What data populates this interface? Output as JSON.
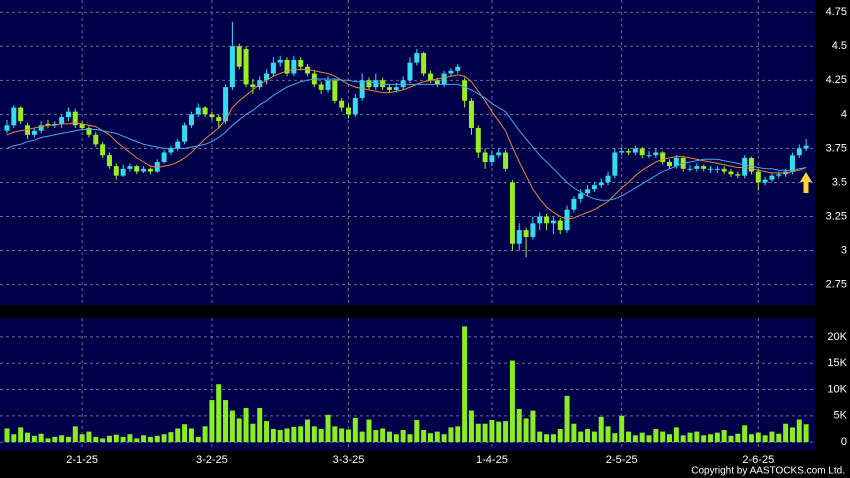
{
  "chart_data": {
    "type": "candlestick",
    "categories": [
      null,
      null,
      null,
      null,
      null,
      null,
      null,
      null,
      null,
      null,
      null,
      "2-1-25",
      null,
      null,
      null,
      null,
      null,
      null,
      null,
      null,
      null,
      null,
      null,
      null,
      null,
      null,
      null,
      null,
      null,
      null,
      "3-2-25",
      null,
      null,
      null,
      null,
      null,
      null,
      null,
      null,
      null,
      null,
      null,
      null,
      null,
      null,
      null,
      null,
      null,
      null,
      null,
      "3-3-25",
      null,
      null,
      null,
      null,
      null,
      null,
      null,
      null,
      null,
      null,
      null,
      null,
      null,
      null,
      null,
      null,
      null,
      null,
      null,
      null,
      "1-4-25",
      null,
      null,
      null,
      null,
      null,
      null,
      null,
      null,
      null,
      null,
      null,
      null,
      null,
      null,
      null,
      null,
      null,
      null,
      "2-5-25",
      null,
      null,
      null,
      null,
      null,
      null,
      null,
      null,
      null,
      null,
      null,
      null,
      null,
      null,
      null,
      null,
      null,
      null,
      null,
      "2-6-25",
      null,
      null,
      null,
      null,
      null,
      null,
      null
    ],
    "ohlc": [
      [
        3.88,
        3.96,
        3.86,
        3.92
      ],
      [
        3.92,
        4.07,
        3.9,
        4.05
      ],
      [
        4.05,
        4.06,
        3.93,
        3.95
      ],
      [
        3.92,
        3.94,
        3.82,
        3.85
      ],
      [
        3.85,
        3.9,
        3.83,
        3.88
      ],
      [
        3.88,
        3.95,
        3.86,
        3.92
      ],
      [
        3.93,
        3.96,
        3.9,
        3.92
      ],
      [
        3.92,
        3.95,
        3.9,
        3.93
      ],
      [
        3.93,
        4.0,
        3.9,
        3.98
      ],
      [
        3.98,
        4.05,
        3.95,
        4.02
      ],
      [
        4.02,
        4.04,
        3.9,
        3.92
      ],
      [
        3.93,
        3.95,
        3.88,
        3.9
      ],
      [
        3.9,
        3.92,
        3.83,
        3.85
      ],
      [
        3.85,
        3.87,
        3.76,
        3.78
      ],
      [
        3.78,
        3.8,
        3.68,
        3.7
      ],
      [
        3.7,
        3.72,
        3.6,
        3.62
      ],
      [
        3.62,
        3.64,
        3.52,
        3.55
      ],
      [
        3.55,
        3.63,
        3.54,
        3.6
      ],
      [
        3.6,
        3.64,
        3.58,
        3.62
      ],
      [
        3.62,
        3.63,
        3.56,
        3.58
      ],
      [
        3.58,
        3.62,
        3.57,
        3.6
      ],
      [
        3.6,
        3.61,
        3.56,
        3.58
      ],
      [
        3.58,
        3.67,
        3.57,
        3.65
      ],
      [
        3.65,
        3.74,
        3.64,
        3.72
      ],
      [
        3.72,
        3.77,
        3.7,
        3.75
      ],
      [
        3.75,
        3.82,
        3.73,
        3.8
      ],
      [
        3.8,
        3.94,
        3.78,
        3.92
      ],
      [
        3.92,
        4.02,
        3.9,
        4.0
      ],
      [
        4.0,
        4.08,
        3.98,
        4.05
      ],
      [
        4.05,
        4.06,
        3.98,
        4.0
      ],
      [
        4.0,
        4.02,
        3.96,
        3.98
      ],
      [
        3.98,
        4.0,
        3.9,
        3.95
      ],
      [
        3.95,
        4.22,
        3.93,
        4.2
      ],
      [
        4.2,
        4.68,
        4.18,
        4.5
      ],
      [
        4.5,
        4.52,
        4.33,
        4.35
      ],
      [
        4.48,
        4.5,
        4.2,
        4.22
      ],
      [
        4.22,
        4.26,
        4.15,
        4.2
      ],
      [
        4.2,
        4.28,
        4.18,
        4.25
      ],
      [
        4.25,
        4.33,
        4.22,
        4.3
      ],
      [
        4.3,
        4.42,
        4.28,
        4.38
      ],
      [
        4.38,
        4.43,
        4.35,
        4.4
      ],
      [
        4.4,
        4.42,
        4.28,
        4.3
      ],
      [
        4.3,
        4.43,
        4.28,
        4.4
      ],
      [
        4.4,
        4.42,
        4.32,
        4.35
      ],
      [
        4.35,
        4.37,
        4.28,
        4.3
      ],
      [
        4.3,
        4.32,
        4.2,
        4.22
      ],
      [
        4.22,
        4.24,
        4.15,
        4.18
      ],
      [
        4.18,
        4.28,
        4.16,
        4.25
      ],
      [
        4.25,
        4.26,
        4.08,
        4.1
      ],
      [
        4.1,
        4.12,
        4.02,
        4.05
      ],
      [
        4.05,
        4.08,
        3.97,
        4.0
      ],
      [
        4.0,
        4.15,
        3.98,
        4.12
      ],
      [
        4.12,
        4.3,
        4.1,
        4.25
      ],
      [
        4.25,
        4.27,
        4.18,
        4.2
      ],
      [
        4.2,
        4.3,
        4.18,
        4.25
      ],
      [
        4.25,
        4.27,
        4.18,
        4.2
      ],
      [
        4.2,
        4.22,
        4.16,
        4.18
      ],
      [
        4.18,
        4.23,
        4.16,
        4.2
      ],
      [
        4.2,
        4.28,
        4.18,
        4.25
      ],
      [
        4.25,
        4.42,
        4.23,
        4.38
      ],
      [
        4.38,
        4.48,
        4.36,
        4.45
      ],
      [
        4.45,
        4.46,
        4.28,
        4.3
      ],
      [
        4.3,
        4.32,
        4.23,
        4.25
      ],
      [
        4.25,
        4.27,
        4.2,
        4.22
      ],
      [
        4.22,
        4.32,
        4.2,
        4.3
      ],
      [
        4.3,
        4.34,
        4.28,
        4.32
      ],
      [
        4.32,
        4.37,
        4.3,
        4.35
      ],
      [
        4.25,
        4.27,
        4.05,
        4.1
      ],
      [
        4.1,
        4.12,
        3.85,
        3.9
      ],
      [
        3.9,
        3.92,
        3.68,
        3.72
      ],
      [
        3.72,
        3.75,
        3.6,
        3.65
      ],
      [
        3.65,
        3.73,
        3.62,
        3.7
      ],
      [
        3.7,
        3.75,
        3.68,
        3.72
      ],
      [
        3.72,
        3.74,
        3.58,
        3.6
      ],
      [
        3.5,
        3.52,
        3.0,
        3.05
      ],
      [
        3.05,
        3.2,
        3.0,
        3.15
      ],
      [
        3.15,
        3.17,
        2.95,
        3.1
      ],
      [
        3.1,
        3.25,
        3.08,
        3.2
      ],
      [
        3.2,
        3.28,
        3.15,
        3.25
      ],
      [
        3.25,
        3.27,
        3.15,
        3.2
      ],
      [
        3.2,
        3.25,
        3.12,
        3.22
      ],
      [
        3.22,
        3.24,
        3.12,
        3.15
      ],
      [
        3.15,
        3.33,
        3.13,
        3.3
      ],
      [
        3.3,
        3.4,
        3.28,
        3.38
      ],
      [
        3.38,
        3.45,
        3.35,
        3.42
      ],
      [
        3.42,
        3.48,
        3.4,
        3.45
      ],
      [
        3.45,
        3.5,
        3.43,
        3.48
      ],
      [
        3.48,
        3.53,
        3.46,
        3.5
      ],
      [
        3.5,
        3.58,
        3.48,
        3.55
      ],
      [
        3.55,
        3.75,
        3.53,
        3.72
      ],
      [
        3.72,
        3.76,
        3.7,
        3.73
      ],
      [
        3.73,
        3.75,
        3.7,
        3.72
      ],
      [
        3.72,
        3.77,
        3.7,
        3.75
      ],
      [
        3.75,
        3.76,
        3.68,
        3.7
      ],
      [
        3.7,
        3.73,
        3.68,
        3.7
      ],
      [
        3.7,
        3.75,
        3.68,
        3.72
      ],
      [
        3.72,
        3.73,
        3.63,
        3.65
      ],
      [
        3.65,
        3.67,
        3.6,
        3.62
      ],
      [
        3.62,
        3.7,
        3.6,
        3.68
      ],
      [
        3.68,
        3.69,
        3.58,
        3.6
      ],
      [
        3.6,
        3.63,
        3.58,
        3.6
      ],
      [
        3.6,
        3.64,
        3.58,
        3.62
      ],
      [
        3.62,
        3.63,
        3.58,
        3.6
      ],
      [
        3.6,
        3.62,
        3.57,
        3.6
      ],
      [
        3.6,
        3.62,
        3.57,
        3.6
      ],
      [
        3.6,
        3.62,
        3.56,
        3.58
      ],
      [
        3.58,
        3.6,
        3.54,
        3.56
      ],
      [
        3.56,
        3.58,
        3.53,
        3.55
      ],
      [
        3.55,
        3.7,
        3.53,
        3.68
      ],
      [
        3.68,
        3.69,
        3.56,
        3.58
      ],
      [
        3.58,
        3.6,
        3.44,
        3.5
      ],
      [
        3.5,
        3.54,
        3.48,
        3.52
      ],
      [
        3.52,
        3.57,
        3.5,
        3.55
      ],
      [
        3.55,
        3.58,
        3.53,
        3.56
      ],
      [
        3.56,
        3.6,
        3.54,
        3.58
      ],
      [
        3.58,
        3.72,
        3.56,
        3.7
      ],
      [
        3.7,
        3.78,
        3.68,
        3.75
      ],
      [
        3.75,
        3.82,
        3.73,
        3.77
      ]
    ],
    "up_color": "#33ddee",
    "down_color": "#99ee22",
    "lines": [
      {
        "color": "#e8892c",
        "values": [
          3.85,
          3.87,
          3.88,
          3.89,
          3.9,
          3.91,
          3.92,
          3.92,
          3.93,
          3.93,
          3.94,
          3.93,
          3.92,
          3.91,
          3.88,
          3.85,
          3.8,
          3.76,
          3.72,
          3.68,
          3.65,
          3.62,
          3.61,
          3.62,
          3.63,
          3.65,
          3.68,
          3.72,
          3.77,
          3.82,
          3.86,
          3.9,
          3.96,
          4.05,
          4.1,
          4.14,
          4.18,
          4.22,
          4.25,
          4.28,
          4.3,
          4.32,
          4.33,
          4.33,
          4.33,
          4.32,
          4.31,
          4.3,
          4.28,
          4.25,
          4.22,
          4.2,
          4.19,
          4.18,
          4.17,
          4.16,
          4.16,
          4.17,
          4.18,
          4.2,
          4.22,
          4.24,
          4.25,
          4.26,
          4.27,
          4.28,
          4.29,
          4.28,
          4.24,
          4.17,
          4.1,
          4.02,
          3.95,
          3.88,
          3.76,
          3.65,
          3.55,
          3.45,
          3.38,
          3.32,
          3.28,
          3.25,
          3.23,
          3.24,
          3.26,
          3.28,
          3.3,
          3.33,
          3.36,
          3.41,
          3.46,
          3.5,
          3.55,
          3.59,
          3.62,
          3.65,
          3.67,
          3.68,
          3.69,
          3.69,
          3.68,
          3.67,
          3.66,
          3.65,
          3.64,
          3.63,
          3.62,
          3.61,
          3.61,
          3.6,
          3.59,
          3.58,
          3.57,
          3.57,
          3.57,
          3.58,
          3.59,
          3.61
        ]
      },
      {
        "color": "#4aa8e8",
        "values": [
          3.75,
          3.77,
          3.78,
          3.8,
          3.81,
          3.83,
          3.84,
          3.85,
          3.86,
          3.87,
          3.88,
          3.89,
          3.89,
          3.89,
          3.88,
          3.87,
          3.86,
          3.84,
          3.82,
          3.8,
          3.78,
          3.77,
          3.76,
          3.75,
          3.75,
          3.75,
          3.75,
          3.76,
          3.77,
          3.78,
          3.8,
          3.83,
          3.87,
          3.92,
          3.96,
          4.0,
          4.03,
          4.07,
          4.1,
          4.14,
          4.17,
          4.2,
          4.22,
          4.24,
          4.25,
          4.26,
          4.26,
          4.26,
          4.26,
          4.25,
          4.25,
          4.24,
          4.24,
          4.24,
          4.23,
          4.22,
          4.22,
          4.22,
          4.22,
          4.22,
          4.22,
          4.22,
          4.22,
          4.22,
          4.22,
          4.22,
          4.22,
          4.2,
          4.18,
          4.15,
          4.12,
          4.08,
          4.05,
          4.02,
          3.95,
          3.88,
          3.82,
          3.76,
          3.7,
          3.65,
          3.6,
          3.55,
          3.5,
          3.46,
          3.43,
          3.4,
          3.38,
          3.37,
          3.37,
          3.38,
          3.4,
          3.43,
          3.46,
          3.49,
          3.52,
          3.55,
          3.58,
          3.6,
          3.62,
          3.64,
          3.65,
          3.66,
          3.67,
          3.67,
          3.67,
          3.66,
          3.65,
          3.64,
          3.63,
          3.62,
          3.61,
          3.6,
          3.6,
          3.59,
          3.59,
          3.59,
          3.6,
          3.61
        ]
      }
    ],
    "ylim": [
      2.6,
      4.84
    ],
    "yticks": [
      2.75,
      3,
      3.25,
      3.5,
      3.75,
      4,
      4.25,
      4.5,
      4.75
    ],
    "grid": true,
    "volume": {
      "color": "#88ee22",
      "values": [
        2600,
        1500,
        2800,
        1800,
        1200,
        1600,
        700,
        1000,
        1300,
        1000,
        3000,
        1500,
        2000,
        1000,
        700,
        1200,
        1400,
        1000,
        1500,
        700,
        1300,
        1000,
        1200,
        1500,
        1900,
        2600,
        3400,
        2600,
        1000,
        3000,
        8000,
        11000,
        8000,
        6000,
        4500,
        6500,
        3500,
        6500,
        4000,
        2500,
        2300,
        2600,
        2900,
        3000,
        4300,
        3000,
        2500,
        5200,
        3000,
        2600,
        2400,
        4600,
        2000,
        4300,
        2300,
        2600,
        2000,
        1500,
        2300,
        1500,
        4200,
        2300,
        1700,
        2000,
        1500,
        2800,
        3000,
        22000,
        6000,
        3500,
        3500,
        4200,
        3900,
        4000,
        15500,
        6300,
        4500,
        6000,
        2000,
        1500,
        1500,
        2500,
        8800,
        3500,
        2000,
        2500,
        2000,
        4800,
        3000,
        1700,
        5000,
        2000,
        1300,
        1800,
        1300,
        2500,
        2000,
        1500,
        2800,
        1300,
        1800,
        2000,
        1300,
        1500,
        1800,
        2300,
        1200,
        1600,
        3200,
        1500,
        1800,
        1300,
        2000,
        1600,
        3500,
        2800,
        4300,
        3400
      ],
      "ylim": [
        -1500,
        23600
      ],
      "yticks": [
        0,
        {
          "value": 5000,
          "label": "5K"
        },
        {
          "value": 10000,
          "label": "10K"
        },
        {
          "value": 15000,
          "label": "15K"
        },
        {
          "value": 20000,
          "label": "20K"
        }
      ]
    },
    "copyright": "Copyright by AASTOCKS.com Ltd."
  }
}
